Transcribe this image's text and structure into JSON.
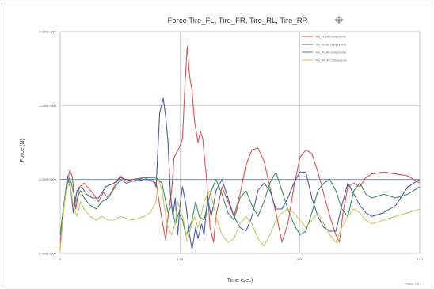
{
  "chart_data": {
    "type": "line",
    "title": "Force Tire_FL, Tire_FR, Tire_RL, Tire_RR",
    "xlabel": "Time (sec)",
    "ylabel": "Force (N)",
    "xlim": [
      0,
      3
    ],
    "ylim": [
      -2000000,
      4000000
    ],
    "x_ticks": [
      0,
      1,
      2,
      3
    ],
    "x_tick_labels": [
      "0",
      "1.00",
      "2.00",
      "3.00"
    ],
    "y_ticks": [
      -2000000,
      0,
      2000000,
      4000000
    ],
    "y_tick_labels": [
      "-2.000E+006",
      "0.000E+000",
      "2.000E+006",
      "4.000E+006"
    ],
    "grid": true,
    "legend_position": "top-right",
    "series": [
      {
        "name": "Tire_FL.All Components",
        "color": "#e05050",
        "points": [
          [
            0.0,
            -1700000
          ],
          [
            0.02,
            -1000000
          ],
          [
            0.05,
            -200000
          ],
          [
            0.08,
            250000
          ],
          [
            0.1,
            100000
          ],
          [
            0.13,
            -800000
          ],
          [
            0.16,
            -200000
          ],
          [
            0.2,
            -100000
          ],
          [
            0.24,
            -250000
          ],
          [
            0.28,
            -400000
          ],
          [
            0.32,
            -600000
          ],
          [
            0.36,
            -350000
          ],
          [
            0.4,
            -500000
          ],
          [
            0.45,
            -200000
          ],
          [
            0.5,
            100000
          ],
          [
            0.55,
            -50000
          ],
          [
            0.6,
            0
          ],
          [
            0.7,
            50000
          ],
          [
            0.8,
            -100000
          ],
          [
            0.85,
            -1100000
          ],
          [
            0.88,
            -1650000
          ],
          [
            0.9,
            -1000000
          ],
          [
            0.93,
            -300000
          ],
          [
            0.95,
            600000
          ],
          [
            1.0,
            900000
          ],
          [
            1.02,
            1100000
          ],
          [
            1.04,
            2500000
          ],
          [
            1.06,
            3600000
          ],
          [
            1.08,
            2800000
          ],
          [
            1.1,
            2400000
          ],
          [
            1.12,
            1600000
          ],
          [
            1.15,
            1000000
          ],
          [
            1.17,
            1300000
          ],
          [
            1.19,
            1100000
          ],
          [
            1.2,
            700000
          ],
          [
            1.22,
            100000
          ],
          [
            1.25,
            -1300000
          ],
          [
            1.28,
            -1700000
          ],
          [
            1.3,
            -1000000
          ],
          [
            1.35,
            -200000
          ],
          [
            1.4,
            -600000
          ],
          [
            1.45,
            -1000000
          ],
          [
            1.5,
            -400000
          ],
          [
            1.55,
            400000
          ],
          [
            1.6,
            800000
          ],
          [
            1.65,
            850000
          ],
          [
            1.7,
            500000
          ],
          [
            1.75,
            -200000
          ],
          [
            1.8,
            -900000
          ],
          [
            1.85,
            -1700000
          ],
          [
            1.9,
            -1200000
          ],
          [
            1.95,
            -200000
          ],
          [
            2.0,
            600000
          ],
          [
            2.05,
            800000
          ],
          [
            2.1,
            700000
          ],
          [
            2.15,
            200000
          ],
          [
            2.2,
            -400000
          ],
          [
            2.25,
            -1000000
          ],
          [
            2.3,
            -1500000
          ],
          [
            2.33,
            -1700000
          ],
          [
            2.36,
            -900000
          ],
          [
            2.4,
            -200000
          ],
          [
            2.45,
            -100000
          ],
          [
            2.5,
            -200000
          ],
          [
            2.55,
            50000
          ],
          [
            2.6,
            150000
          ],
          [
            2.7,
            200000
          ],
          [
            2.8,
            150000
          ],
          [
            2.9,
            100000
          ],
          [
            3.0,
            -100000
          ]
        ]
      },
      {
        "name": "Tire_FR.All Components",
        "color": "#4a5aa8",
        "points": [
          [
            0.0,
            -1900000
          ],
          [
            0.03,
            -800000
          ],
          [
            0.06,
            100000
          ],
          [
            0.09,
            -300000
          ],
          [
            0.11,
            -900000
          ],
          [
            0.14,
            -300000
          ],
          [
            0.18,
            -200000
          ],
          [
            0.22,
            -400000
          ],
          [
            0.27,
            -500000
          ],
          [
            0.32,
            -500000
          ],
          [
            0.38,
            -200000
          ],
          [
            0.45,
            -100000
          ],
          [
            0.5,
            50000
          ],
          [
            0.55,
            0
          ],
          [
            0.62,
            -50000
          ],
          [
            0.7,
            0
          ],
          [
            0.78,
            0
          ],
          [
            0.8,
            -200000
          ],
          [
            0.83,
            1800000
          ],
          [
            0.86,
            2200000
          ],
          [
            0.88,
            1700000
          ],
          [
            0.9,
            1000000
          ],
          [
            0.92,
            -400000
          ],
          [
            0.94,
            -1000000
          ],
          [
            0.96,
            -500000
          ],
          [
            0.98,
            -1500000
          ],
          [
            1.0,
            -700000
          ],
          [
            1.02,
            -200000
          ],
          [
            1.05,
            -700000
          ],
          [
            1.08,
            -1500000
          ],
          [
            1.1,
            -1900000
          ],
          [
            1.13,
            -1300000
          ],
          [
            1.15,
            -1600000
          ],
          [
            1.18,
            -1200000
          ],
          [
            1.2,
            -1500000
          ],
          [
            1.23,
            -500000
          ],
          [
            1.26,
            -1000000
          ],
          [
            1.28,
            -700000
          ],
          [
            1.3,
            -300000
          ],
          [
            1.35,
            0
          ],
          [
            1.4,
            -500000
          ],
          [
            1.45,
            -1000000
          ],
          [
            1.5,
            -1300000
          ],
          [
            1.55,
            -1400000
          ],
          [
            1.6,
            -1000000
          ],
          [
            1.65,
            -300000
          ],
          [
            1.7,
            -100000
          ],
          [
            1.75,
            -300000
          ],
          [
            1.8,
            -800000
          ],
          [
            1.85,
            -800000
          ],
          [
            1.9,
            -500000
          ],
          [
            1.95,
            -100000
          ],
          [
            2.0,
            200000
          ],
          [
            2.05,
            200000
          ],
          [
            2.1,
            -500000
          ],
          [
            2.15,
            -1000000
          ],
          [
            2.2,
            -1300000
          ],
          [
            2.25,
            -1400000
          ],
          [
            2.3,
            -1400000
          ],
          [
            2.35,
            -700000
          ],
          [
            2.4,
            -100000
          ],
          [
            2.45,
            -400000
          ],
          [
            2.5,
            -700000
          ],
          [
            2.55,
            -900000
          ],
          [
            2.6,
            -1000000
          ],
          [
            2.7,
            -900000
          ],
          [
            2.8,
            -700000
          ],
          [
            2.9,
            -200000
          ],
          [
            3.0,
            0
          ]
        ]
      },
      {
        "name": "Tire_RL.All Components",
        "color": "#3d8f63",
        "points": [
          [
            0.0,
            -1500000
          ],
          [
            0.03,
            -700000
          ],
          [
            0.05,
            -200000
          ],
          [
            0.08,
            50000
          ],
          [
            0.1,
            -200000
          ],
          [
            0.13,
            -600000
          ],
          [
            0.17,
            -300000
          ],
          [
            0.2,
            -500000
          ],
          [
            0.25,
            -700000
          ],
          [
            0.3,
            -800000
          ],
          [
            0.35,
            -600000
          ],
          [
            0.4,
            -500000
          ],
          [
            0.5,
            0
          ],
          [
            0.55,
            -100000
          ],
          [
            0.6,
            -50000
          ],
          [
            0.7,
            50000
          ],
          [
            0.8,
            50000
          ],
          [
            0.85,
            -100000
          ],
          [
            0.88,
            -600000
          ],
          [
            0.9,
            -900000
          ],
          [
            0.93,
            -700000
          ],
          [
            0.96,
            -1200000
          ],
          [
            0.99,
            -900000
          ],
          [
            1.02,
            -1100000
          ],
          [
            1.05,
            -1500000
          ],
          [
            1.08,
            -1300000
          ],
          [
            1.1,
            -1100000
          ],
          [
            1.13,
            -600000
          ],
          [
            1.16,
            -1000000
          ],
          [
            1.2,
            -1100000
          ],
          [
            1.25,
            -400000
          ],
          [
            1.3,
            0
          ],
          [
            1.35,
            -400000
          ],
          [
            1.4,
            -900000
          ],
          [
            1.45,
            -1100000
          ],
          [
            1.5,
            -500000
          ],
          [
            1.55,
            -300000
          ],
          [
            1.6,
            -700000
          ],
          [
            1.65,
            -1000000
          ],
          [
            1.7,
            -600000
          ],
          [
            1.75,
            -100000
          ],
          [
            1.8,
            200000
          ],
          [
            1.85,
            -300000
          ],
          [
            1.9,
            -800000
          ],
          [
            1.95,
            -1200000
          ],
          [
            2.0,
            -1500000
          ],
          [
            2.05,
            -1400000
          ],
          [
            2.1,
            -900000
          ],
          [
            2.15,
            -300000
          ],
          [
            2.2,
            -100000
          ],
          [
            2.25,
            0
          ],
          [
            2.3,
            -300000
          ],
          [
            2.35,
            -800000
          ],
          [
            2.4,
            -1000000
          ],
          [
            2.45,
            -300000
          ],
          [
            2.5,
            -100000
          ],
          [
            2.55,
            -400000
          ],
          [
            2.6,
            -500000
          ],
          [
            2.7,
            -400000
          ],
          [
            2.8,
            -500000
          ],
          [
            2.9,
            -400000
          ],
          [
            3.0,
            -200000
          ]
        ]
      },
      {
        "name": "Tire_RR.All Components",
        "color": "#c8c860",
        "points": [
          [
            0.0,
            -1900000
          ],
          [
            0.03,
            -800000
          ],
          [
            0.05,
            -300000
          ],
          [
            0.08,
            -50000
          ],
          [
            0.11,
            -700000
          ],
          [
            0.14,
            -1000000
          ],
          [
            0.17,
            -600000
          ],
          [
            0.2,
            -800000
          ],
          [
            0.25,
            -1000000
          ],
          [
            0.3,
            -1100000
          ],
          [
            0.35,
            -1000000
          ],
          [
            0.4,
            -1100000
          ],
          [
            0.45,
            -1100000
          ],
          [
            0.5,
            -1000000
          ],
          [
            0.6,
            -1100000
          ],
          [
            0.7,
            -1000000
          ],
          [
            0.75,
            -900000
          ],
          [
            0.8,
            -600000
          ],
          [
            0.82,
            0
          ],
          [
            0.85,
            -300000
          ],
          [
            0.88,
            -1000000
          ],
          [
            0.9,
            -1300000
          ],
          [
            0.93,
            -1500000
          ],
          [
            0.96,
            -1200000
          ],
          [
            0.98,
            -600000
          ],
          [
            1.0,
            -800000
          ],
          [
            1.03,
            -1100000
          ],
          [
            1.06,
            -1700000
          ],
          [
            1.09,
            -1300000
          ],
          [
            1.12,
            -1000000
          ],
          [
            1.15,
            -1300000
          ],
          [
            1.18,
            -900000
          ],
          [
            1.2,
            -600000
          ],
          [
            1.25,
            -300000
          ],
          [
            1.3,
            -1000000
          ],
          [
            1.35,
            -1500000
          ],
          [
            1.4,
            -1700000
          ],
          [
            1.45,
            -1600000
          ],
          [
            1.5,
            -1200000
          ],
          [
            1.55,
            -1000000
          ],
          [
            1.6,
            -1200000
          ],
          [
            1.65,
            -1600000
          ],
          [
            1.7,
            -1800000
          ],
          [
            1.75,
            -1500000
          ],
          [
            1.8,
            -1100000
          ],
          [
            1.85,
            -900000
          ],
          [
            1.9,
            -800000
          ],
          [
            1.95,
            -900000
          ],
          [
            2.0,
            -1100000
          ],
          [
            2.05,
            -1300000
          ],
          [
            2.1,
            -1100000
          ],
          [
            2.15,
            -900000
          ],
          [
            2.2,
            -1200000
          ],
          [
            2.25,
            -1500000
          ],
          [
            2.3,
            -1700000
          ],
          [
            2.35,
            -1300000
          ],
          [
            2.4,
            -1000000
          ],
          [
            2.45,
            -800000
          ],
          [
            2.5,
            -900000
          ],
          [
            2.55,
            -1100000
          ],
          [
            2.6,
            -1200000
          ],
          [
            2.7,
            -1100000
          ],
          [
            2.8,
            -1000000
          ],
          [
            2.9,
            -900000
          ],
          [
            3.0,
            -800000
          ]
        ]
      }
    ]
  },
  "footer_stamp": "Results 1 of 1"
}
